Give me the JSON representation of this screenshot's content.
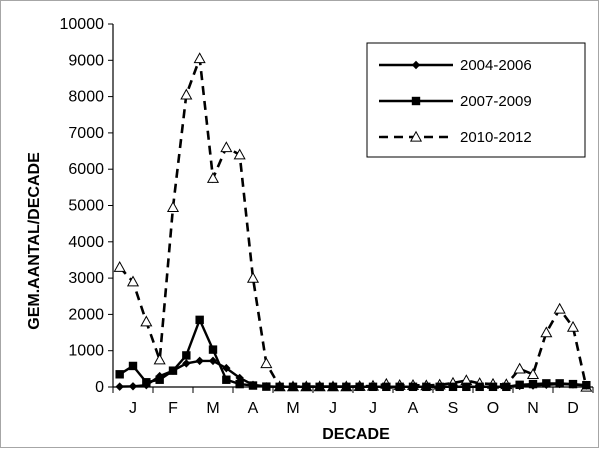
{
  "chart_data": {
    "type": "line",
    "title": "",
    "xlabel": "DECADE",
    "ylabel": "GEM.AANTAL/DECADE",
    "ylim": [
      0,
      10000
    ],
    "yticks": [
      0,
      1000,
      2000,
      3000,
      4000,
      5000,
      6000,
      7000,
      8000,
      9000,
      10000
    ],
    "x_range": [
      0.5,
      36.5
    ],
    "month_labels": [
      "J",
      "F",
      "M",
      "A",
      "M",
      "J",
      "J",
      "A",
      "S",
      "O",
      "N",
      "D"
    ],
    "grid": false,
    "legend_position": "top-right",
    "x": [
      1,
      2,
      3,
      4,
      5,
      6,
      7,
      8,
      9,
      10,
      11,
      12,
      13,
      14,
      15,
      16,
      17,
      18,
      19,
      20,
      21,
      22,
      23,
      24,
      25,
      26,
      27,
      28,
      29,
      30,
      31,
      32,
      33,
      34,
      35,
      36
    ],
    "series": [
      {
        "name": "2004-2006",
        "marker": "diamond",
        "line": "solid",
        "color": "#000000",
        "values": [
          10,
          20,
          50,
          300,
          450,
          650,
          720,
          720,
          520,
          250,
          60,
          20,
          5,
          5,
          5,
          5,
          5,
          5,
          5,
          5,
          5,
          5,
          5,
          5,
          5,
          5,
          5,
          5,
          5,
          5,
          30,
          40,
          60,
          80,
          70,
          40
        ]
      },
      {
        "name": "2007-2009",
        "marker": "square",
        "line": "solid",
        "color": "#000000",
        "values": [
          350,
          580,
          130,
          200,
          450,
          870,
          1850,
          1030,
          200,
          80,
          40,
          10,
          5,
          5,
          5,
          5,
          5,
          5,
          5,
          5,
          5,
          5,
          5,
          5,
          5,
          5,
          5,
          5,
          5,
          5,
          60,
          80,
          100,
          100,
          80,
          50
        ]
      },
      {
        "name": "2010-2012",
        "marker": "triangle-open",
        "line": "dashed",
        "color": "#000000",
        "values": [
          3300,
          2900,
          1800,
          750,
          4950,
          8050,
          9050,
          5750,
          6600,
          6400,
          3000,
          650,
          10,
          10,
          10,
          10,
          10,
          10,
          20,
          30,
          80,
          50,
          50,
          40,
          60,
          110,
          180,
          100,
          80,
          70,
          500,
          350,
          1500,
          2150,
          1650,
          0
        ]
      }
    ]
  }
}
